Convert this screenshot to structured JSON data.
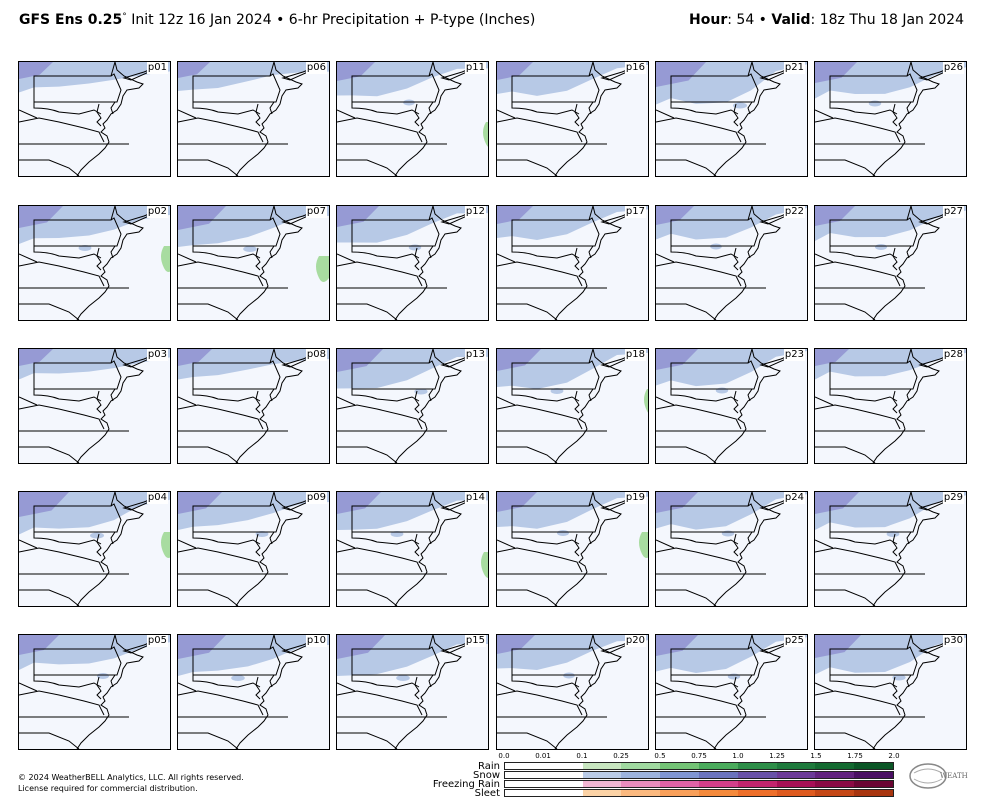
{
  "header": {
    "model": "GFS Ens 0.25",
    "degree": "°",
    "init": " Init 12z 16 Jan 2024",
    "separator": " • ",
    "product": "6-hr Precipitation + P-type (Inches)",
    "hour_label": "Hour",
    "hour_value": ": 54",
    "valid_label": "Valid",
    "valid_value": ": 18z Thu 18 Jan 2024"
  },
  "panels": [
    {
      "label": "p01",
      "snow": 0.35,
      "rain": 0.0
    },
    {
      "label": "p06",
      "snow": 0.3,
      "rain": 0.0
    },
    {
      "label": "p11",
      "snow": 0.45,
      "rain": 0.1
    },
    {
      "label": "p16",
      "snow": 0.4,
      "rain": 0.0
    },
    {
      "label": "p21",
      "snow": 0.75,
      "rain": 0.0
    },
    {
      "label": "p26",
      "snow": 0.55,
      "rain": 0.0
    },
    {
      "label": "p02",
      "snow": 0.6,
      "rain": 0.3
    },
    {
      "label": "p07",
      "snow": 0.7,
      "rain": 0.5
    },
    {
      "label": "p12",
      "snow": 0.55,
      "rain": 0.0
    },
    {
      "label": "p17",
      "snow": 0.4,
      "rain": 0.0
    },
    {
      "label": "p22",
      "snow": 0.45,
      "rain": 0.0
    },
    {
      "label": "p27",
      "snow": 0.5,
      "rain": 0.0
    },
    {
      "label": "p03",
      "snow": 0.35,
      "rain": 0.0
    },
    {
      "label": "p08",
      "snow": 0.35,
      "rain": 0.0
    },
    {
      "label": "p13",
      "snow": 0.65,
      "rain": 0.0
    },
    {
      "label": "p18",
      "snow": 0.6,
      "rain": 0.05
    },
    {
      "label": "p23",
      "snow": 0.55,
      "rain": 0.0
    },
    {
      "label": "p28",
      "snow": 0.35,
      "rain": 0.0
    },
    {
      "label": "p04",
      "snow": 0.75,
      "rain": 0.3
    },
    {
      "label": "p09",
      "snow": 0.6,
      "rain": 0.0
    },
    {
      "label": "p14",
      "snow": 0.6,
      "rain": 0.2
    },
    {
      "label": "p19",
      "snow": 0.5,
      "rain": 0.3
    },
    {
      "label": "p24",
      "snow": 0.55,
      "rain": 0.0
    },
    {
      "label": "p29",
      "snow": 0.6,
      "rain": 0.0
    },
    {
      "label": "p05",
      "snow": 0.5,
      "rain": 0.0
    },
    {
      "label": "p10",
      "snow": 0.7,
      "rain": 0.0
    },
    {
      "label": "p15",
      "snow": 0.7,
      "rain": 0.0
    },
    {
      "label": "p20",
      "snow": 0.45,
      "rain": 0.0
    },
    {
      "label": "p25",
      "snow": 0.55,
      "rain": 0.0
    },
    {
      "label": "p30",
      "snow": 0.65,
      "rain": 0.0
    }
  ],
  "legend": {
    "ticks": [
      "0.0",
      "0.01",
      "0.1",
      "0.25",
      "0.5",
      "0.75",
      "1.0",
      "1.25",
      "1.5",
      "1.75",
      "2.0"
    ],
    "rows": [
      {
        "label": "Rain",
        "colors": [
          "#ffffff",
          "#ffffff",
          "#c8e6c0",
          "#a0d9a0",
          "#74c476",
          "#4aab5c",
          "#2d8e48",
          "#1e7a3c",
          "#136a30",
          "#0b5626"
        ]
      },
      {
        "label": "Snow",
        "colors": [
          "#ffffff",
          "#ffffff",
          "#b9cbe8",
          "#9db4df",
          "#8096d2",
          "#6a73be",
          "#6852a8",
          "#6c3a98",
          "#62227f",
          "#4a0f63"
        ]
      },
      {
        "label": "Freezing Rain",
        "colors": [
          "#ffffff",
          "#ffffff",
          "#f2b6d2",
          "#e98cbd",
          "#e063a6",
          "#d23f8a",
          "#c2256e",
          "#a61056",
          "#8a0a44",
          "#6a0533"
        ]
      },
      {
        "label": "Sleet",
        "colors": [
          "#ffffff",
          "#ffffff",
          "#fcd3a6",
          "#fbb97f",
          "#f9a05a",
          "#f58a3c",
          "#ee6f2a",
          "#de5a1f",
          "#c44716",
          "#a8350f"
        ]
      }
    ]
  },
  "footer": {
    "copyright": "© 2024 WeatherBELL Analytics, LLC. All rights reserved.",
    "license": "License required for commercial distribution."
  },
  "logo": {
    "text": "WEATHERBELL"
  },
  "colors": {
    "snow_light": "#b7c9e6",
    "snow_mid": "#9aaedc",
    "snow_dark": "#8d8fd0",
    "rain": "#a8dca0",
    "panel_bg": "#f4f7fd"
  }
}
